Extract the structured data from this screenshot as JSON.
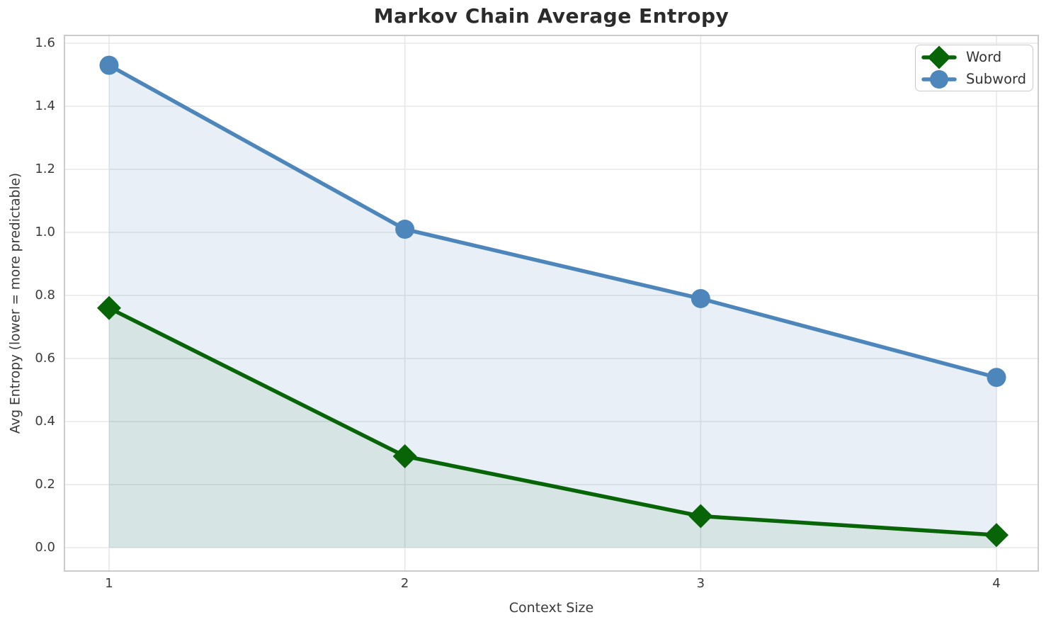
{
  "chart_data": {
    "type": "line",
    "title": "Markov Chain Average Entropy",
    "xlabel": "Context Size",
    "ylabel": "Avg Entropy (lower = more predictable)",
    "x": [
      1,
      2,
      3,
      4
    ],
    "series": [
      {
        "name": "Word",
        "marker": "diamond",
        "color": "#076407",
        "fill_color": "rgba(7,100,7,0.08)",
        "values": [
          0.76,
          0.29,
          0.1,
          0.04
        ]
      },
      {
        "name": "Subword",
        "marker": "circle",
        "color": "#4d86ba",
        "fill_color": "rgba(77,134,186,0.13)",
        "values": [
          1.53,
          1.01,
          0.79,
          0.54
        ]
      }
    ],
    "xticks": [
      "1",
      "2",
      "3",
      "4"
    ],
    "yticks": [
      0.0,
      0.2,
      0.4,
      0.6,
      0.8,
      1.0,
      1.2,
      1.4,
      1.6
    ],
    "ytick_labels": [
      "0.0",
      "0.2",
      "0.4",
      "0.6",
      "0.8",
      "1.0",
      "1.2",
      "1.4",
      "1.6"
    ],
    "xlim": [
      0.85,
      4.15
    ],
    "ylim": [
      -0.07,
      1.62
    ],
    "grid": true,
    "legend_position": "upper right",
    "grid_color": "#e7e7e7",
    "spine_color": "#cccccc",
    "background_color": "#ffffff"
  }
}
